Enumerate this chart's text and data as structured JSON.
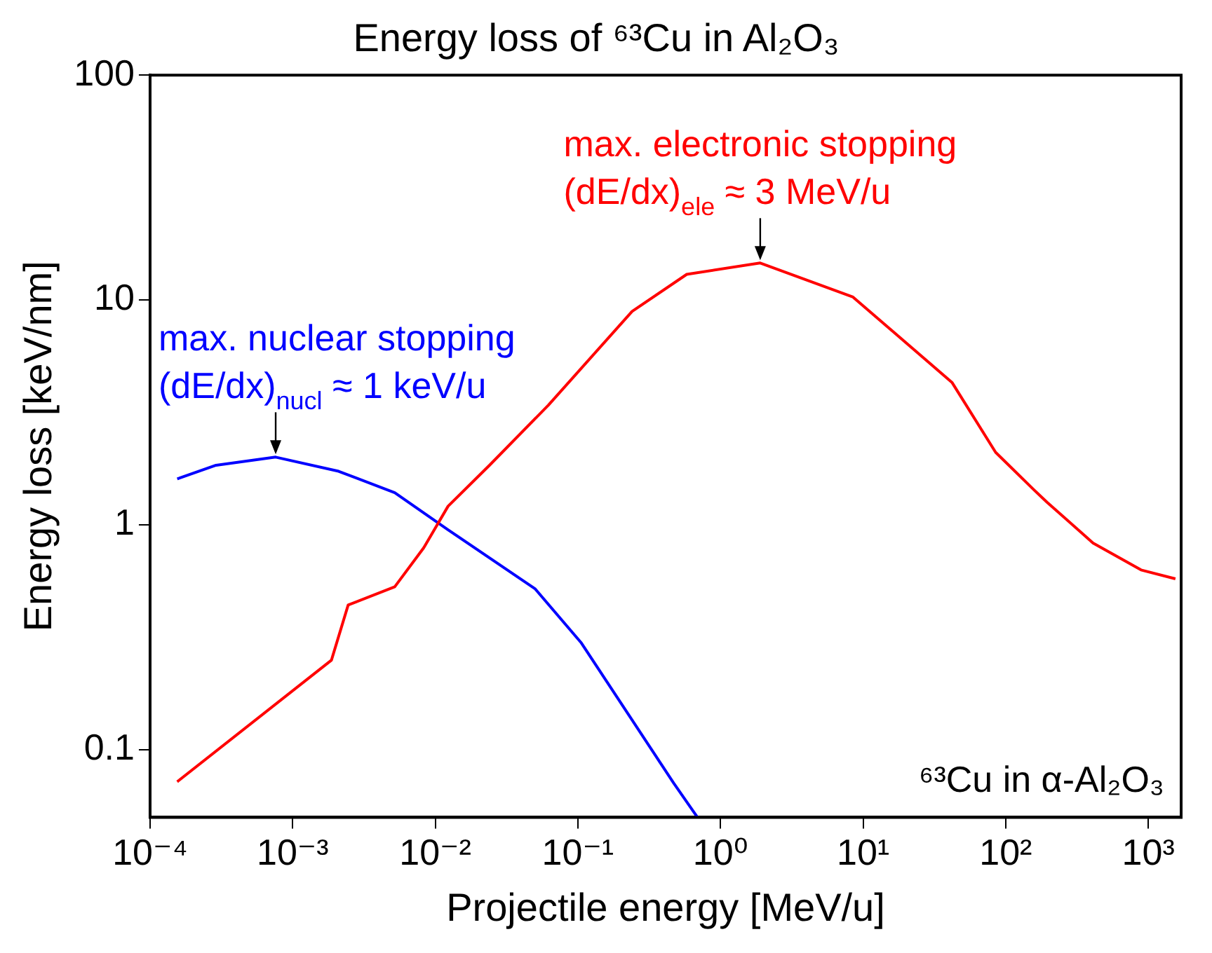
{
  "chart_data": {
    "type": "line",
    "title": "Energy loss of ⁶³Cu in Al₂O₃",
    "xlabel": "Projectile energy [MeV/u]",
    "ylabel": "Energy loss [keV/nm]",
    "log": "xy",
    "grid": false,
    "legend": false,
    "marker": "none",
    "line_style": "solid",
    "xlim": [
      0.0001,
      1700
    ],
    "ylim": [
      0.05,
      100
    ],
    "xticks": [
      {
        "value": 0.0001,
        "label": "10⁻⁴"
      },
      {
        "value": 0.001,
        "label": "10⁻³"
      },
      {
        "value": 0.01,
        "label": "10⁻²"
      },
      {
        "value": 0.1,
        "label": "10⁻¹"
      },
      {
        "value": 1,
        "label": "10⁰"
      },
      {
        "value": 10,
        "label": "10¹"
      },
      {
        "value": 100,
        "label": "10²"
      },
      {
        "value": 1000,
        "label": "10³"
      }
    ],
    "yticks": [
      0.1,
      1,
      10,
      100
    ],
    "series": [
      {
        "color": "#ff0000",
        "x": [
          0.000155,
          0.00187,
          0.00245,
          0.0052,
          0.0083,
          0.0123,
          0.024,
          0.062,
          0.24,
          0.58,
          1.9,
          8.5,
          42,
          85,
          158,
          195,
          410,
          890,
          1550
        ],
        "values": [
          0.072,
          0.25,
          0.44,
          0.53,
          0.79,
          1.21,
          1.84,
          3.4,
          8.9,
          13,
          14.6,
          10.3,
          4.3,
          2.1,
          1.43,
          1.26,
          0.83,
          0.63,
          0.575
        ]
      },
      {
        "color": "#0000ff",
        "x": [
          0.000155,
          0.00029,
          0.00076,
          0.0021,
          0.0052,
          0.0123,
          0.05,
          0.105,
          0.47,
          0.69
        ],
        "values": [
          1.6,
          1.84,
          2.0,
          1.73,
          1.39,
          0.95,
          0.52,
          0.3,
          0.071,
          0.05
        ]
      }
    ],
    "annotations": [
      {
        "text": "max. electronic stopping\n(dE/dx)$_{ele}$ ≈ 3 MeV/u",
        "x": 1.9,
        "y": 14.6
      },
      {
        "text": "max. nuclear stopping\n(dE/dx)$_{nucl}$ ≈ 1 keV/u",
        "x": 0.00076,
        "y": 2.0
      },
      "⁶³Cu in α-Al₂O₃"
    ]
  }
}
